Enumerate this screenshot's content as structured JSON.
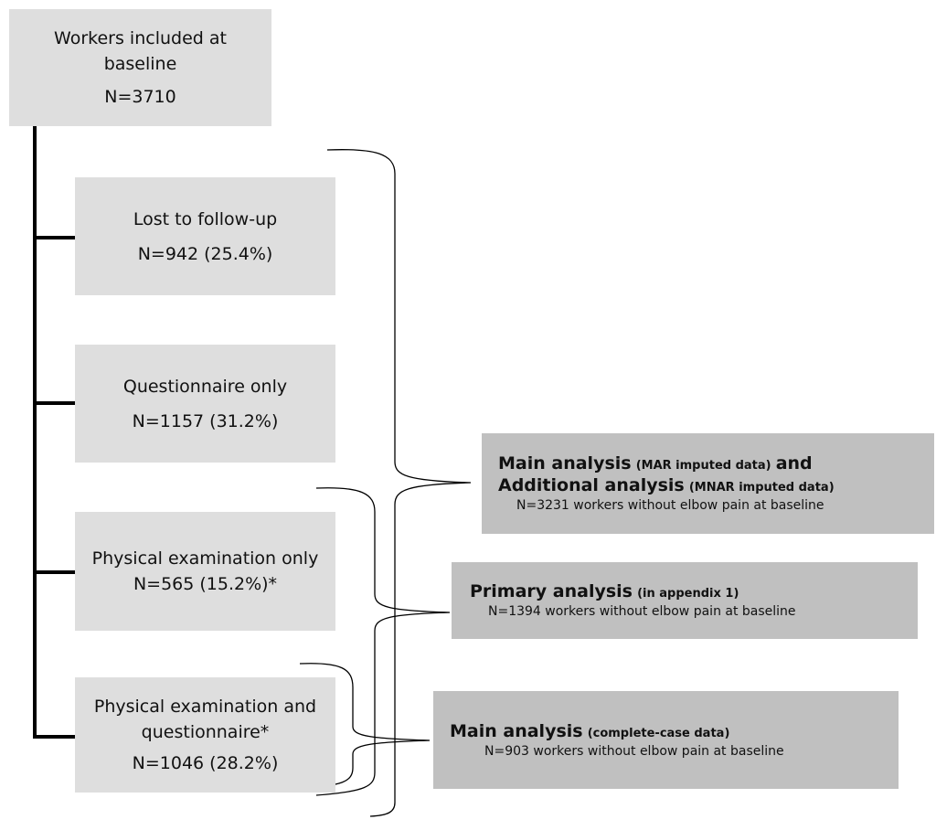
{
  "baseline": {
    "line1": "Workers included at",
    "line2": "baseline",
    "count": "N=3710"
  },
  "lost": {
    "label": "Lost to follow-up",
    "count": "N=942 (25.4%)"
  },
  "questionnaire": {
    "label": "Questionnaire only",
    "count": "N=1157 (31.2%)"
  },
  "physical": {
    "label": "Physical examination only",
    "count": "N=565 (15.2%)*"
  },
  "both": {
    "line1": "Physical examination and",
    "line2": "questionnaire*",
    "count": "N=1046 (28.2%)"
  },
  "mar": {
    "title1": "Main analysis",
    "note1": "(MAR imputed data)",
    "and": "and",
    "title2": "Additional analysis",
    "note2": "(MNAR imputed data)",
    "sub": "N=3231 workers without elbow pain at baseline"
  },
  "primary": {
    "title": "Primary analysis",
    "note": "(in appendix 1)",
    "sub": "N=1394 workers without elbow pain at baseline"
  },
  "complete": {
    "title": "Main analysis",
    "note": "(complete-case data)",
    "sub": "N=903 workers without elbow pain at baseline"
  }
}
